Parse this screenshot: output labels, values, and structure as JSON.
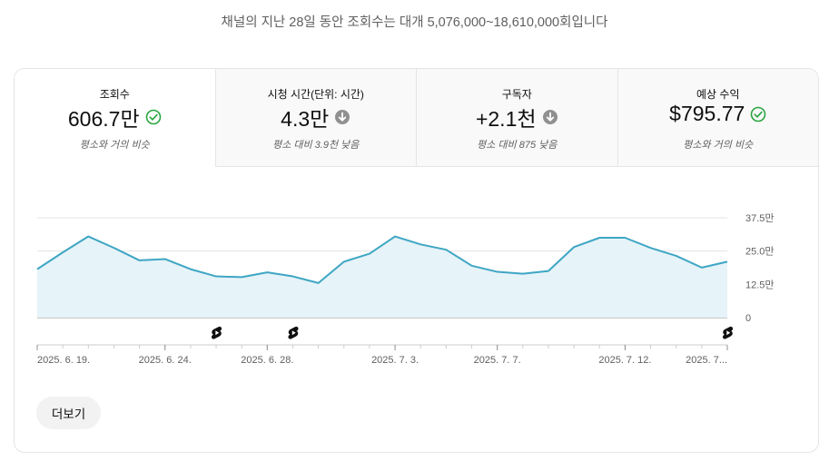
{
  "headline": "채널의 지난 28일 동안 조회수는 대개 5,076,000~18,610,000회입니다",
  "metrics": [
    {
      "label": "조회수",
      "value": "606.7만",
      "status_icon": "check-circle-icon",
      "note": "평소와 거의 비슷"
    },
    {
      "label": "시청 시간(단위: 시간)",
      "value": "4.3만",
      "status_icon": "arrow-down-circle-icon",
      "note": "평소 대비 3.9천 낮음"
    },
    {
      "label": "구독자",
      "value": "+2.1천",
      "status_icon": "arrow-down-circle-icon",
      "note": "평소 대비 875 낮음"
    },
    {
      "label": "예상 수익",
      "value": "$795.77",
      "status_icon": "check-circle-icon",
      "note": "평소와 거의 비슷"
    }
  ],
  "colors": {
    "line": "#3ea6c4",
    "area": "#e6f3f8",
    "check": "#2ba640",
    "down": "#909090"
  },
  "chart_data": {
    "type": "area",
    "y_ticks": [
      {
        "value": 375000,
        "label": "37.5만"
      },
      {
        "value": 250000,
        "label": "25.0만"
      },
      {
        "value": 125000,
        "label": "12.5만"
      },
      {
        "value": 0,
        "label": "0"
      }
    ],
    "ylim": [
      0,
      375000
    ],
    "x_ticks": [
      {
        "index": 0,
        "label": "2025. 6. 19."
      },
      {
        "index": 5,
        "label": "2025. 6. 24."
      },
      {
        "index": 9,
        "label": "2025. 6. 28."
      },
      {
        "index": 14,
        "label": "2025. 7. 3."
      },
      {
        "index": 18,
        "label": "2025. 7. 7."
      },
      {
        "index": 23,
        "label": "2025. 7. 12."
      },
      {
        "index": 27,
        "label": "2025. 7..."
      }
    ],
    "values": [
      182000,
      245000,
      305000,
      262000,
      215000,
      220000,
      182000,
      155000,
      152000,
      170000,
      155000,
      130000,
      210000,
      240000,
      305000,
      275000,
      255000,
      195000,
      172000,
      165000,
      175000,
      265000,
      300000,
      300000,
      262000,
      232000,
      188000,
      210000
    ],
    "shorts_markers": [
      7,
      10,
      27
    ],
    "grid": true
  },
  "more_button": "더보기"
}
